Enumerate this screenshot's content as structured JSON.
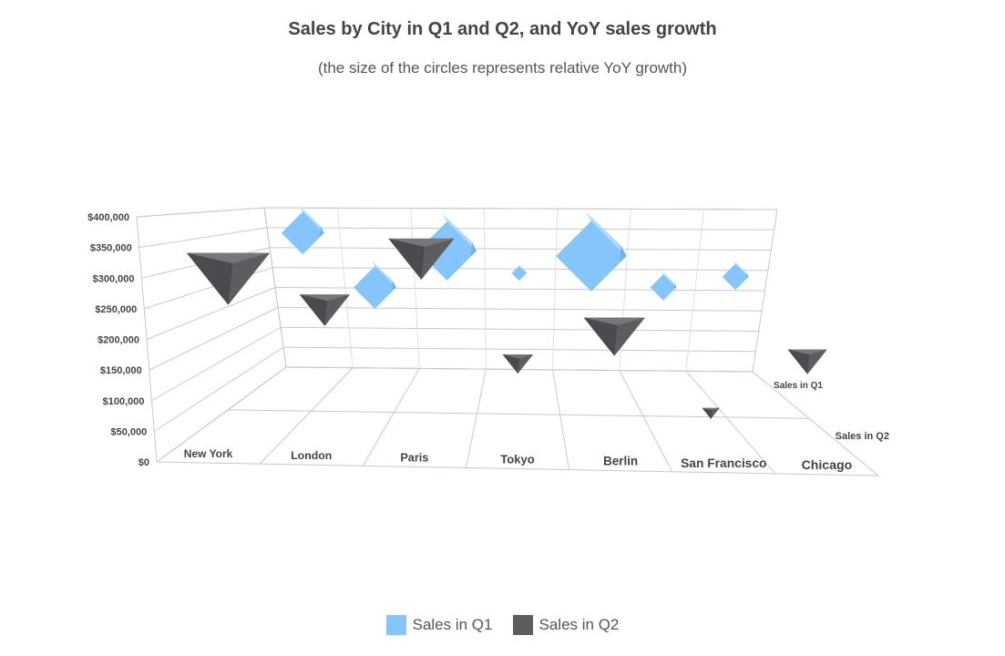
{
  "chart_data": {
    "type": "bubble",
    "title": "Sales by City in Q1 and Q2, and YoY sales growth",
    "subtitle": "(the size of the circles represents relative YoY growth)",
    "categories": [
      "New York",
      "London",
      "Paris",
      "Tokyo",
      "Berlin",
      "San Francisco",
      "Chicago"
    ],
    "series": [
      {
        "name": "Sales in Q1",
        "color": "#86c5fb",
        "marker": "cube",
        "values": [
          345000,
          220000,
          305000,
          255000,
          295000,
          225000,
          250000
        ],
        "growth": [
          2.6,
          2.6,
          3.6,
          0.9,
          4.3,
          1.6,
          1.6
        ]
      },
      {
        "name": "Sales in Q2",
        "color": "#5c5c61",
        "marker": "inverted-pyramid",
        "values": [
          295000,
          240000,
          330000,
          150000,
          200000,
          70000,
          160000
        ],
        "growth": [
          3.8,
          2.3,
          3.0,
          1.4,
          2.8,
          0.8,
          1.8
        ]
      }
    ],
    "y_axis": {
      "min": 0,
      "max": 400000,
      "tick_labels": [
        "$0",
        "$50,000",
        "$100,000",
        "$150,000",
        "$200,000",
        "$250,000",
        "$300,000",
        "$350,000",
        "$400,000"
      ]
    },
    "depth_labels": [
      "Sales in Q1",
      "Sales in Q2"
    ],
    "legend_position": "bottom",
    "grid": true,
    "view": "3d"
  }
}
